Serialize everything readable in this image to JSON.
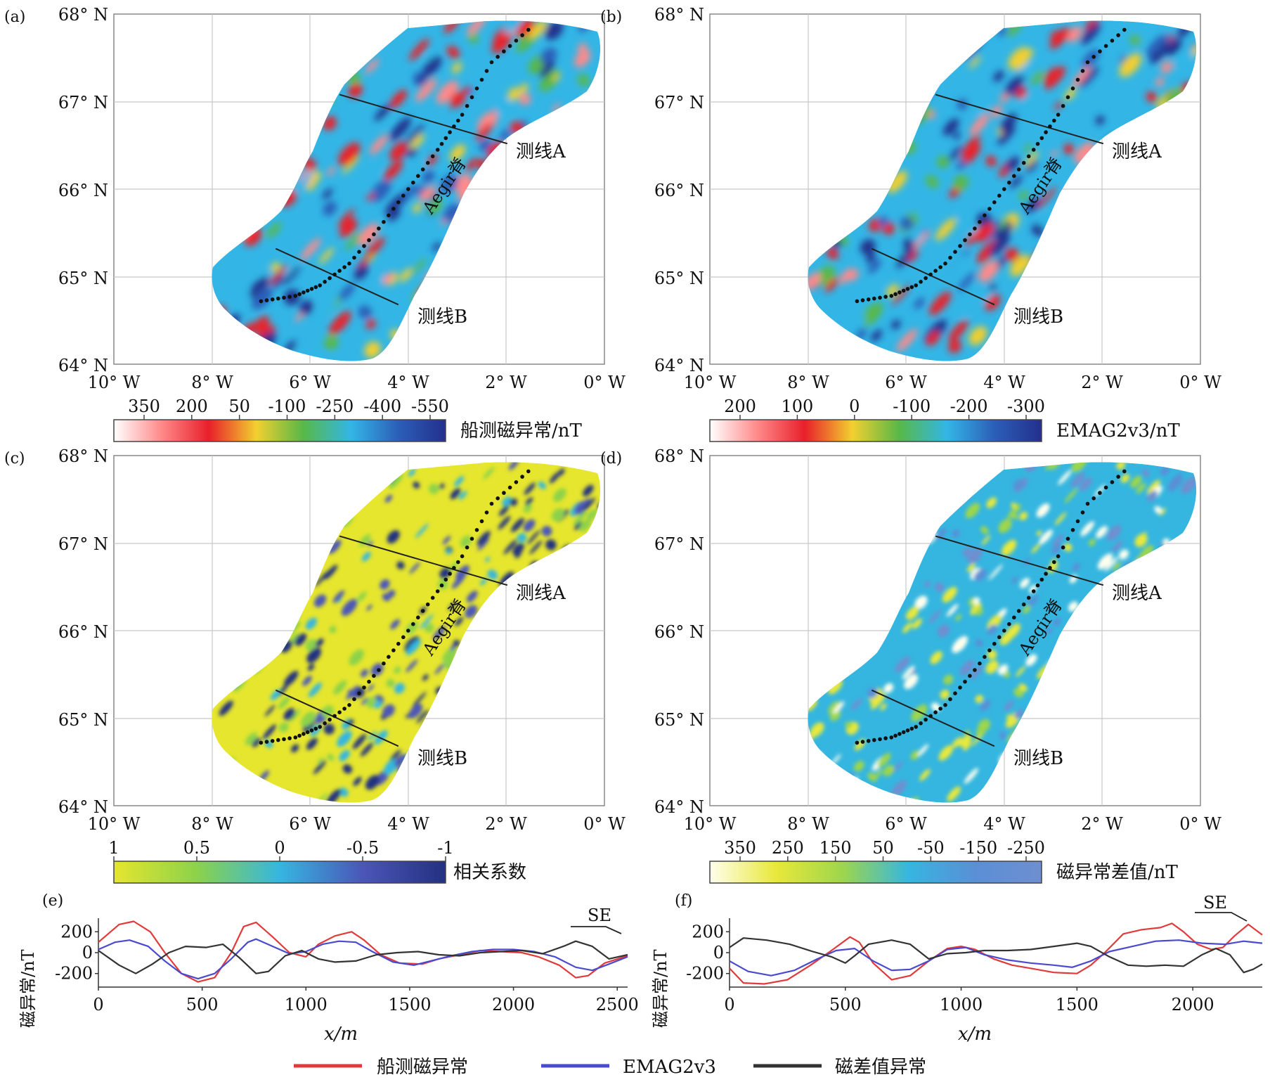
{
  "maps": [
    {
      "panel": "(a)",
      "lat_ticks": [
        "68° N",
        "67° N",
        "66° N",
        "65° N",
        "64° N"
      ],
      "lon_ticks": [
        "10° W",
        "8° W",
        "6° W",
        "4° W",
        "2° W",
        "0° W"
      ],
      "line_a": "测线A",
      "line_b": "测线B",
      "ridge": "Aegir脊",
      "colorbar": {
        "ticks": [
          "350",
          "200",
          "50",
          "-100",
          "-250",
          "-400",
          "-550"
        ],
        "label": "船测磁异常/nT",
        "colors": [
          "#ffffff",
          "#ff8a8a",
          "#e8202a",
          "#f2cf2f",
          "#58b848",
          "#33b6e6",
          "#2c5fb8",
          "#23308c"
        ]
      }
    },
    {
      "panel": "(b)",
      "lat_ticks": [
        "68° N",
        "67° N",
        "66° N",
        "65° N",
        "64° N"
      ],
      "lon_ticks": [
        "10° W",
        "8° W",
        "6° W",
        "4° W",
        "2° W",
        "0° W"
      ],
      "line_a": "测线A",
      "line_b": "测线B",
      "ridge": "Aegir脊",
      "colorbar": {
        "ticks": [
          "200",
          "100",
          "0",
          "-100",
          "-200",
          "-300"
        ],
        "label": "EMAG2v3/nT",
        "colors": [
          "#ffffff",
          "#ff8a8a",
          "#e8202a",
          "#f2cf2f",
          "#58b848",
          "#33b6e6",
          "#2c5fb8",
          "#23308c"
        ]
      }
    },
    {
      "panel": "(c)",
      "lat_ticks": [
        "68° N",
        "67° N",
        "66° N",
        "65° N",
        "64° N"
      ],
      "lon_ticks": [
        "10° W",
        "8° W",
        "6° W",
        "4° W",
        "2° W",
        "0° W"
      ],
      "line_a": "测线A",
      "line_b": "测线B",
      "ridge": "Aegir脊",
      "colorbar": {
        "ticks": [
          "1",
          "0.5",
          "0",
          "-0.5",
          "-1"
        ],
        "label": "相关系数",
        "colors": [
          "#e6e62e",
          "#8cd24a",
          "#35b6e0",
          "#4b56b8",
          "#243080"
        ]
      }
    },
    {
      "panel": "(d)",
      "lat_ticks": [
        "68° N",
        "67° N",
        "66° N",
        "65° N",
        "64° N"
      ],
      "lon_ticks": [
        "10° W",
        "8° W",
        "6° W",
        "4° W",
        "2° W",
        "0° W"
      ],
      "line_a": "测线A",
      "line_b": "测线B",
      "ridge": "Aegir脊",
      "colorbar": {
        "ticks": [
          "350",
          "250",
          "150",
          "50",
          "-50",
          "-150",
          "-250"
        ],
        "label": "磁异常差值/nT",
        "colors": [
          "#ffffee",
          "#e8e83a",
          "#9ed64c",
          "#35b6e0",
          "#5a8fd6",
          "#6e8fd0"
        ]
      }
    }
  ],
  "profiles": [
    {
      "panel": "(e)",
      "direction": "SE",
      "ylabel": "磁异常/nT",
      "xlabel": "x/m"
    },
    {
      "panel": "(f)",
      "direction": "SE",
      "ylabel": "磁异常/nT",
      "xlabel": "x/m"
    }
  ],
  "legend": {
    "items": [
      "船测磁异常",
      "EMAG2v3",
      "磁差值异常"
    ]
  },
  "chart_data": [
    {
      "type": "line",
      "panel": "(e)",
      "xlabel": "x/m",
      "ylabel": "磁异常/nT",
      "xlim": [
        0,
        2550
      ],
      "ylim": [
        -330,
        330
      ],
      "xticks": [
        0,
        500,
        1000,
        1500,
        2000,
        2500
      ],
      "yticks": [
        200,
        0,
        -200
      ],
      "grid": false,
      "series": [
        {
          "name": "船测磁异常",
          "color": "#e23a3a",
          "points": [
            [
              0,
              100
            ],
            [
              100,
              270
            ],
            [
              170,
              300
            ],
            [
              250,
              200
            ],
            [
              320,
              0
            ],
            [
              400,
              -200
            ],
            [
              480,
              -280
            ],
            [
              560,
              -240
            ],
            [
              640,
              0
            ],
            [
              700,
              250
            ],
            [
              760,
              290
            ],
            [
              840,
              150
            ],
            [
              920,
              0
            ],
            [
              1000,
              -40
            ],
            [
              1060,
              80
            ],
            [
              1140,
              160
            ],
            [
              1220,
              200
            ],
            [
              1280,
              120
            ],
            [
              1360,
              -20
            ],
            [
              1450,
              -100
            ],
            [
              1560,
              -110
            ],
            [
              1640,
              -60
            ],
            [
              1740,
              -20
            ],
            [
              1840,
              20
            ],
            [
              1940,
              10
            ],
            [
              2040,
              0
            ],
            [
              2120,
              -40
            ],
            [
              2220,
              -120
            ],
            [
              2300,
              -240
            ],
            [
              2360,
              -220
            ],
            [
              2440,
              -100
            ],
            [
              2550,
              -30
            ]
          ]
        },
        {
          "name": "EMAG2v3",
          "color": "#4a4ad0",
          "points": [
            [
              0,
              30
            ],
            [
              80,
              100
            ],
            [
              150,
              120
            ],
            [
              240,
              60
            ],
            [
              320,
              -80
            ],
            [
              400,
              -200
            ],
            [
              480,
              -250
            ],
            [
              560,
              -200
            ],
            [
              640,
              -60
            ],
            [
              720,
              100
            ],
            [
              760,
              130
            ],
            [
              840,
              60
            ],
            [
              920,
              -10
            ],
            [
              1000,
              10
            ],
            [
              1080,
              80
            ],
            [
              1160,
              110
            ],
            [
              1240,
              100
            ],
            [
              1320,
              10
            ],
            [
              1420,
              -90
            ],
            [
              1520,
              -120
            ],
            [
              1600,
              -80
            ],
            [
              1700,
              -30
            ],
            [
              1800,
              10
            ],
            [
              1900,
              30
            ],
            [
              2000,
              30
            ],
            [
              2100,
              10
            ],
            [
              2200,
              -40
            ],
            [
              2300,
              -140
            ],
            [
              2380,
              -170
            ],
            [
              2460,
              -110
            ],
            [
              2550,
              -40
            ]
          ]
        },
        {
          "name": "磁差值异常",
          "color": "#333333",
          "points": [
            [
              0,
              20
            ],
            [
              100,
              -120
            ],
            [
              180,
              -200
            ],
            [
              260,
              -110
            ],
            [
              340,
              0
            ],
            [
              420,
              60
            ],
            [
              520,
              50
            ],
            [
              600,
              80
            ],
            [
              680,
              -50
            ],
            [
              760,
              -200
            ],
            [
              820,
              -180
            ],
            [
              900,
              -30
            ],
            [
              980,
              20
            ],
            [
              1060,
              -60
            ],
            [
              1140,
              -90
            ],
            [
              1240,
              -80
            ],
            [
              1340,
              -20
            ],
            [
              1440,
              0
            ],
            [
              1540,
              10
            ],
            [
              1640,
              -20
            ],
            [
              1740,
              -30
            ],
            [
              1840,
              0
            ],
            [
              1940,
              10
            ],
            [
              2040,
              20
            ],
            [
              2140,
              -10
            ],
            [
              2240,
              60
            ],
            [
              2300,
              110
            ],
            [
              2380,
              60
            ],
            [
              2460,
              -60
            ],
            [
              2550,
              -20
            ]
          ]
        }
      ]
    },
    {
      "type": "line",
      "panel": "(f)",
      "xlabel": "x/m",
      "ylabel": "磁异常/nT",
      "xlim": [
        0,
        2300
      ],
      "ylim": [
        -330,
        330
      ],
      "xticks": [
        0,
        500,
        1000,
        1500,
        2000
      ],
      "yticks": [
        200,
        0,
        -200
      ],
      "grid": false,
      "series": [
        {
          "name": "船测磁异常",
          "color": "#e23a3a",
          "points": [
            [
              0,
              -150
            ],
            [
              60,
              -290
            ],
            [
              150,
              -300
            ],
            [
              250,
              -260
            ],
            [
              350,
              -120
            ],
            [
              440,
              20
            ],
            [
              520,
              150
            ],
            [
              560,
              100
            ],
            [
              620,
              -100
            ],
            [
              700,
              -260
            ],
            [
              780,
              -220
            ],
            [
              860,
              -80
            ],
            [
              940,
              40
            ],
            [
              1000,
              60
            ],
            [
              1060,
              30
            ],
            [
              1140,
              -60
            ],
            [
              1220,
              -120
            ],
            [
              1300,
              -150
            ],
            [
              1400,
              -190
            ],
            [
              1500,
              -200
            ],
            [
              1560,
              -120
            ],
            [
              1620,
              0
            ],
            [
              1700,
              180
            ],
            [
              1780,
              220
            ],
            [
              1860,
              240
            ],
            [
              1910,
              280
            ],
            [
              1960,
              200
            ],
            [
              2020,
              80
            ],
            [
              2080,
              30
            ],
            [
              2130,
              50
            ],
            [
              2180,
              160
            ],
            [
              2240,
              270
            ],
            [
              2300,
              170
            ]
          ]
        },
        {
          "name": "EMAG2v3",
          "color": "#4a4ad0",
          "points": [
            [
              0,
              -80
            ],
            [
              80,
              -180
            ],
            [
              180,
              -220
            ],
            [
              280,
              -170
            ],
            [
              380,
              -60
            ],
            [
              460,
              20
            ],
            [
              540,
              40
            ],
            [
              620,
              -80
            ],
            [
              700,
              -170
            ],
            [
              780,
              -160
            ],
            [
              860,
              -80
            ],
            [
              940,
              30
            ],
            [
              1020,
              50
            ],
            [
              1100,
              -20
            ],
            [
              1200,
              -70
            ],
            [
              1300,
              -100
            ],
            [
              1400,
              -120
            ],
            [
              1480,
              -140
            ],
            [
              1560,
              -80
            ],
            [
              1640,
              10
            ],
            [
              1740,
              60
            ],
            [
              1840,
              110
            ],
            [
              1940,
              120
            ],
            [
              2040,
              90
            ],
            [
              2140,
              80
            ],
            [
              2220,
              110
            ],
            [
              2300,
              90
            ]
          ]
        },
        {
          "name": "磁差值异常",
          "color": "#333333",
          "points": [
            [
              0,
              50
            ],
            [
              60,
              140
            ],
            [
              160,
              120
            ],
            [
              260,
              80
            ],
            [
              360,
              10
            ],
            [
              440,
              -40
            ],
            [
              500,
              -100
            ],
            [
              540,
              -30
            ],
            [
              600,
              80
            ],
            [
              700,
              120
            ],
            [
              780,
              80
            ],
            [
              860,
              -60
            ],
            [
              940,
              -10
            ],
            [
              1020,
              0
            ],
            [
              1100,
              20
            ],
            [
              1200,
              20
            ],
            [
              1300,
              30
            ],
            [
              1400,
              60
            ],
            [
              1500,
              90
            ],
            [
              1560,
              60
            ],
            [
              1640,
              -40
            ],
            [
              1720,
              -120
            ],
            [
              1800,
              -130
            ],
            [
              1880,
              -120
            ],
            [
              1960,
              -130
            ],
            [
              2040,
              -20
            ],
            [
              2100,
              40
            ],
            [
              2160,
              -20
            ],
            [
              2220,
              -190
            ],
            [
              2260,
              -160
            ],
            [
              2300,
              -110
            ]
          ]
        }
      ]
    }
  ]
}
